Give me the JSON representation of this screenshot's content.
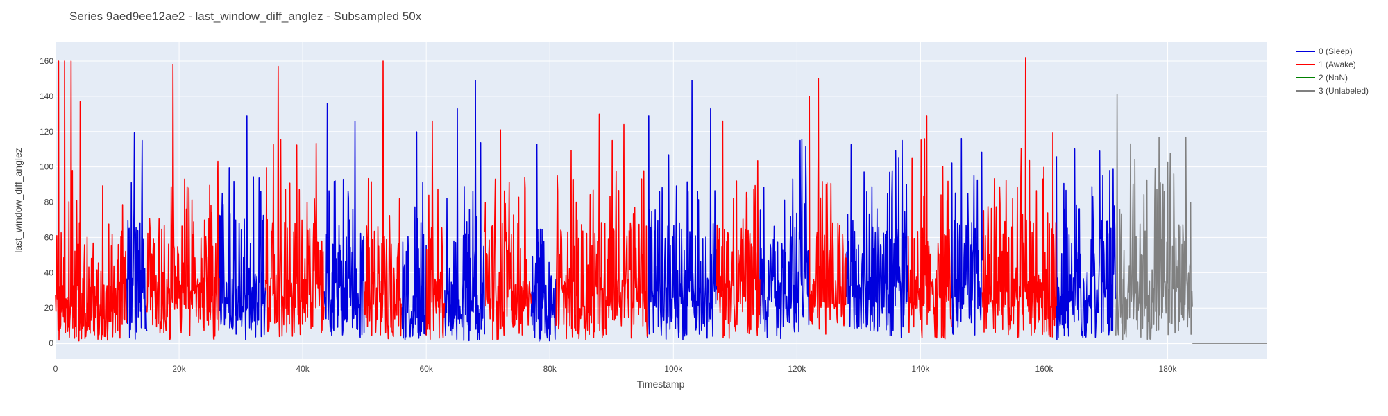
{
  "chart_data": {
    "type": "line",
    "title": "Series 9aed9ee12ae2 - last_window_diff_anglez - Subsampled 50x",
    "xlabel": "Timestamp",
    "ylabel": "last_window_diff_anglez",
    "xlim": [
      0,
      196000
    ],
    "ylim": [
      -9,
      171
    ],
    "x_ticks": [
      0,
      20000,
      40000,
      60000,
      80000,
      100000,
      120000,
      140000,
      160000,
      180000
    ],
    "x_tick_labels": [
      "0",
      "20k",
      "40k",
      "60k",
      "80k",
      "100k",
      "120k",
      "140k",
      "160k",
      "180k"
    ],
    "y_ticks": [
      0,
      20,
      40,
      60,
      80,
      100,
      120,
      140,
      160
    ],
    "y_tick_labels": [
      "0",
      "20",
      "40",
      "60",
      "80",
      "100",
      "120",
      "140",
      "160"
    ],
    "grid": true,
    "legend_position": "right",
    "colors": {
      "plot_bg": "#e5ecf6",
      "grid": "#ffffff"
    },
    "series": [
      {
        "name": "0 (Sleep)",
        "color": "#0000dd",
        "segments": [
          [
            11500,
            14800
          ],
          [
            26500,
            34000
          ],
          [
            43500,
            50000
          ],
          [
            56000,
            60000
          ],
          [
            63000,
            69500
          ],
          [
            77000,
            81000
          ],
          [
            95800,
            107000
          ],
          [
            114000,
            122000
          ],
          [
            128000,
            138000
          ],
          [
            145000,
            150000
          ],
          [
            162000,
            171600
          ]
        ],
        "peaks": [
          [
            14000,
            115
          ],
          [
            31000,
            129
          ],
          [
            44000,
            136
          ],
          [
            48500,
            126
          ],
          [
            65000,
            133
          ],
          [
            68000,
            149
          ],
          [
            73000,
            131
          ],
          [
            96000,
            129
          ],
          [
            103000,
            149
          ],
          [
            106000,
            133
          ],
          [
            120500,
            115
          ],
          [
            137000,
            115
          ],
          [
            162000,
            106
          ],
          [
            169000,
            109
          ]
        ]
      },
      {
        "name": "1 (Awake)",
        "color": "#ff0000",
        "segments": [
          [
            0,
            11500
          ],
          [
            14800,
            26500
          ],
          [
            34000,
            43500
          ],
          [
            50000,
            56000
          ],
          [
            60000,
            63000
          ],
          [
            69500,
            77000
          ],
          [
            81000,
            95800
          ],
          [
            107000,
            114000
          ],
          [
            122000,
            128000
          ],
          [
            138000,
            145000
          ],
          [
            150000,
            162000
          ]
        ],
        "peaks": [
          [
            500,
            160
          ],
          [
            1500,
            160
          ],
          [
            2500,
            160
          ],
          [
            4000,
            137
          ],
          [
            19000,
            158
          ],
          [
            36000,
            157
          ],
          [
            53000,
            160
          ],
          [
            61000,
            126
          ],
          [
            72000,
            121
          ],
          [
            88000,
            130
          ],
          [
            92000,
            124
          ],
          [
            108000,
            126
          ],
          [
            122000,
            140
          ],
          [
            123500,
            150
          ],
          [
            132000,
            120
          ],
          [
            141000,
            129
          ],
          [
            157000,
            162
          ]
        ]
      },
      {
        "name": "2 (NaN)",
        "color": "#008000",
        "segments": [],
        "peaks": []
      },
      {
        "name": "3 (Unlabeled)",
        "color": "#808080",
        "segments": [
          [
            171600,
            184000
          ]
        ],
        "peaks": [
          [
            171800,
            141
          ],
          [
            174000,
            113
          ],
          [
            178000,
            99
          ],
          [
            181000,
            96
          ]
        ],
        "tail": {
          "x": [
            184000,
            196000
          ],
          "y": [
            0,
            0
          ]
        }
      }
    ]
  }
}
